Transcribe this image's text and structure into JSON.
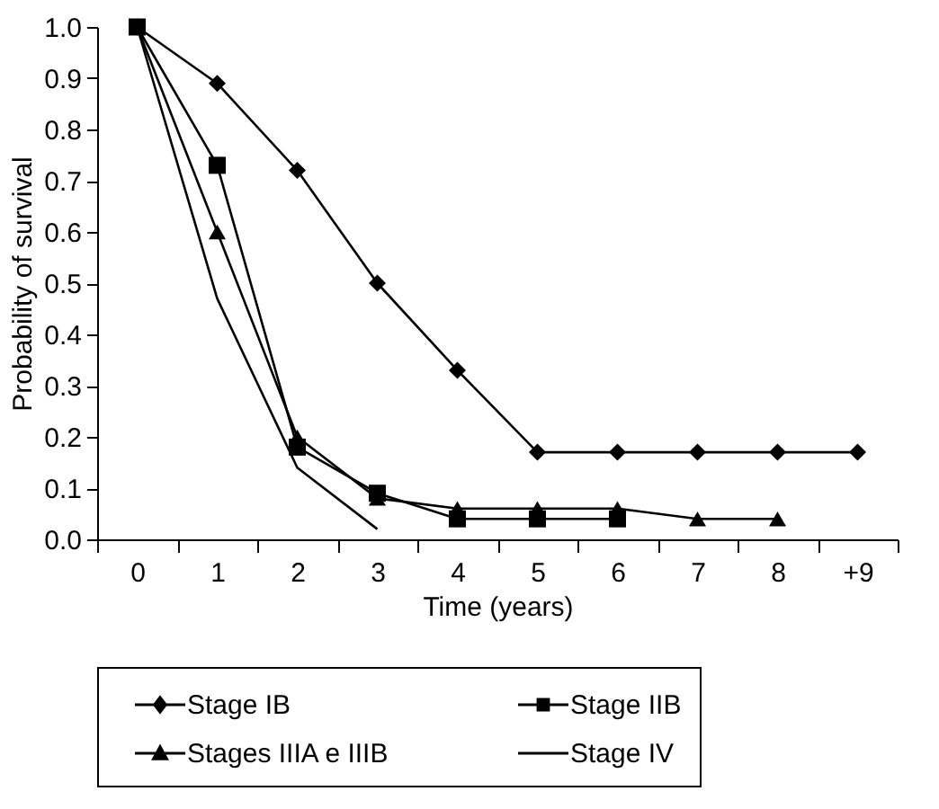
{
  "chart_data": {
    "type": "line",
    "xlabel": "Time (years)",
    "ylabel": "Probability of survival",
    "categories": [
      "0",
      "1",
      "2",
      "3",
      "4",
      "5",
      "6",
      "7",
      "8",
      "+9"
    ],
    "series": [
      {
        "name": "Stage IB",
        "color": "#000000",
        "marker": "diamond",
        "values": [
          1.0,
          0.89,
          0.72,
          0.5,
          0.33,
          0.17,
          0.17,
          0.17,
          0.17,
          0.17
        ]
      },
      {
        "name": "Stage IIB",
        "color": "#000000",
        "marker": "square",
        "values": [
          1.0,
          0.73,
          0.18,
          0.09,
          0.04,
          0.04,
          0.04,
          null,
          null,
          null
        ]
      },
      {
        "name": "Stages IIIA e IIIB",
        "color": "#000000",
        "marker": "triangle",
        "values": [
          1.0,
          0.6,
          0.2,
          0.08,
          0.06,
          0.06,
          0.06,
          0.04,
          0.04,
          null
        ]
      },
      {
        "name": "Stage IV",
        "color": "#000000",
        "marker": "none",
        "values": [
          1.0,
          0.47,
          0.14,
          0.02,
          null,
          null,
          null,
          null,
          null,
          null
        ]
      }
    ],
    "ylim": [
      0,
      1
    ],
    "yticks": [
      {
        "value": 0,
        "label": "0.0"
      },
      0.1,
      0.2,
      0.3,
      0.4,
      0.5,
      0.6,
      0.7,
      0.8,
      0.9,
      {
        "value": 1,
        "label": "1.0"
      }
    ],
    "grid": false,
    "legend": "bottom"
  }
}
